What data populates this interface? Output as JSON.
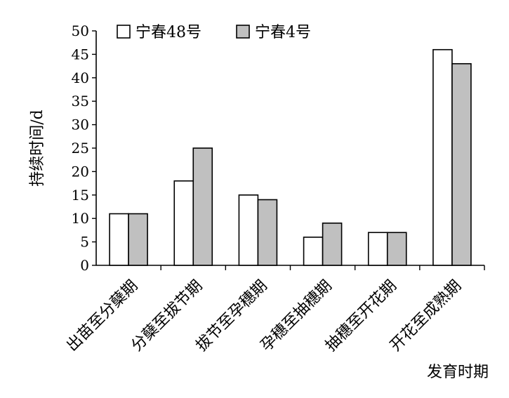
{
  "chart_data": {
    "type": "bar",
    "title": "",
    "xlabel": "发育时期",
    "ylabel": "持续时间/d",
    "ylim": [
      0,
      50
    ],
    "yticks": [
      0,
      5,
      10,
      15,
      20,
      25,
      30,
      35,
      40,
      45,
      50
    ],
    "grid": false,
    "legend_position": "top-left",
    "categories": [
      "出苗至分蘖期",
      "分蘖至拔节期",
      "拔节至孕穗期",
      "孕穗至抽穗期",
      "抽穗至开花期",
      "开花至成熟期"
    ],
    "series": [
      {
        "name": "宁春48号",
        "values": [
          11,
          18,
          15,
          6,
          7,
          46
        ],
        "color": "#ffffff"
      },
      {
        "name": "宁春4号",
        "values": [
          11,
          25,
          14,
          9,
          7,
          43
        ],
        "color": "#c0c0c0"
      }
    ]
  }
}
